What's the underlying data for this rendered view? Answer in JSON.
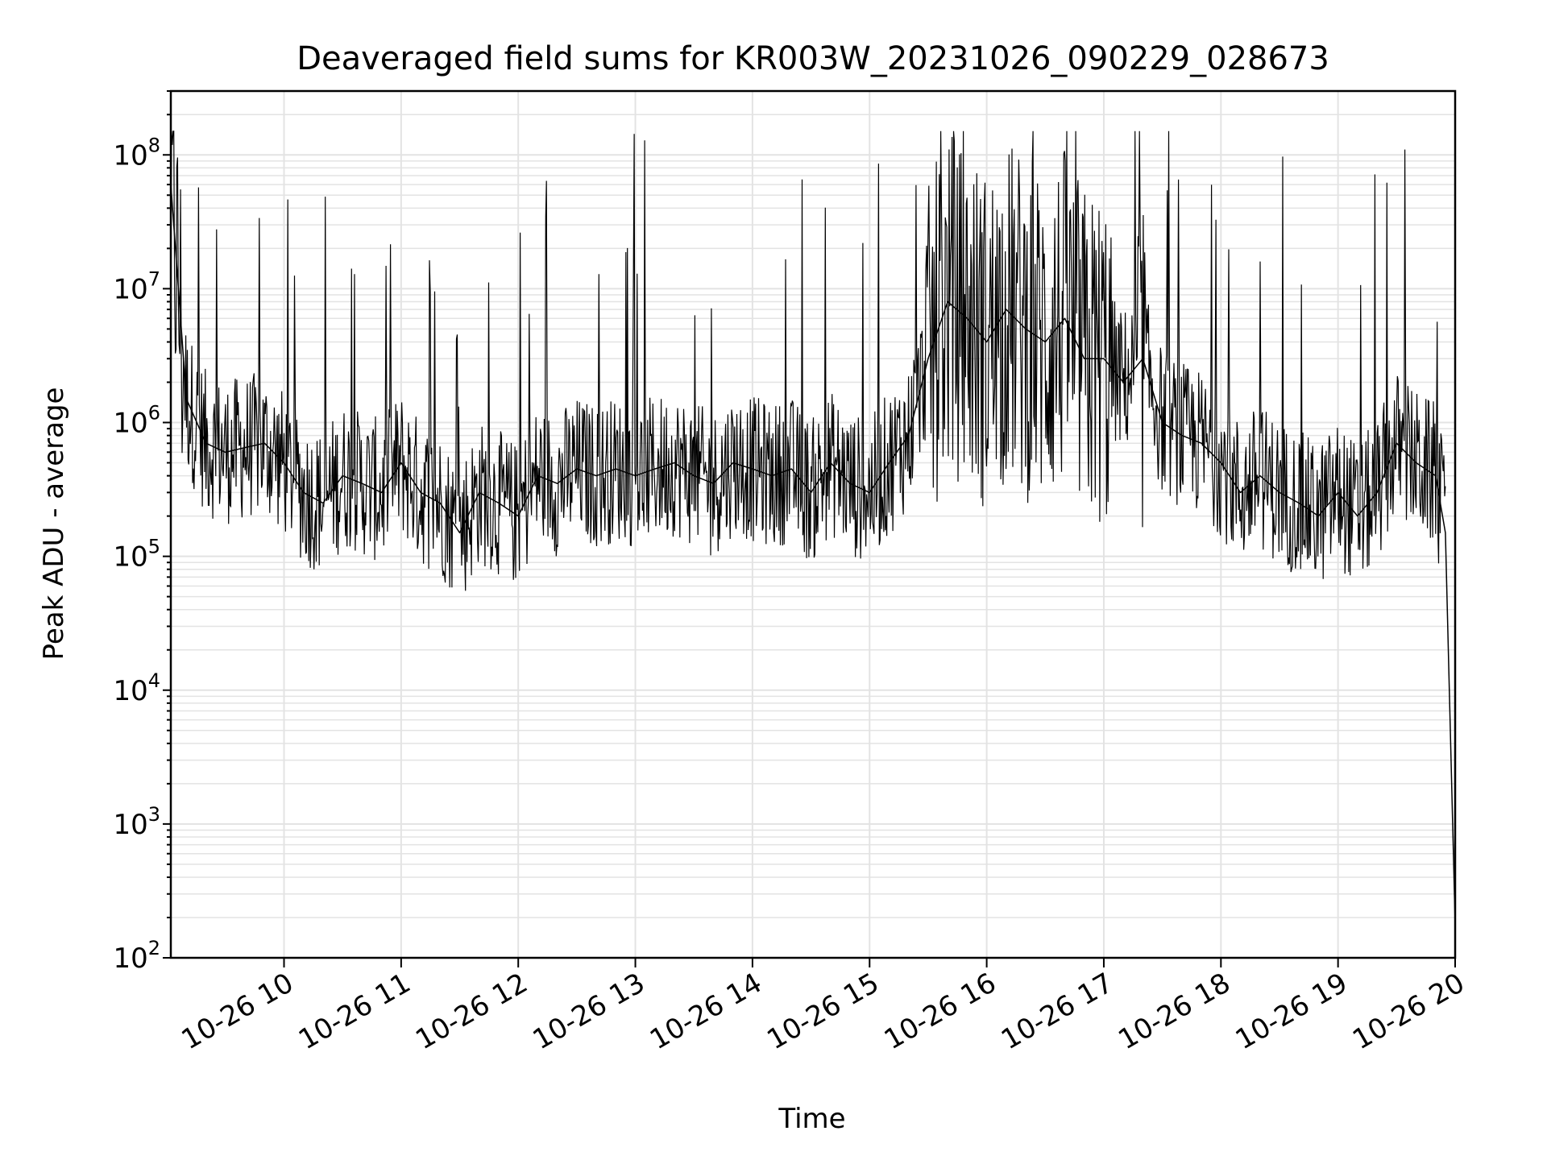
{
  "chart_data": {
    "type": "line",
    "title": "Deaveraged field sums for KR003W_20231026_090229_028673",
    "xlabel": "Time",
    "ylabel": "Peak ADU - average",
    "yscale": "log",
    "ylim": [
      100,
      300000000
    ],
    "xlim": [
      "2023-10-26 09:02",
      "2023-10-26 20:00"
    ],
    "grid": true,
    "line_color": "#000000",
    "x_ticks": [
      {
        "value": "2023-10-26 10:00",
        "label": "10-26 10"
      },
      {
        "value": "2023-10-26 11:00",
        "label": "10-26 11"
      },
      {
        "value": "2023-10-26 12:00",
        "label": "10-26 12"
      },
      {
        "value": "2023-10-26 13:00",
        "label": "10-26 13"
      },
      {
        "value": "2023-10-26 14:00",
        "label": "10-26 14"
      },
      {
        "value": "2023-10-26 15:00",
        "label": "10-26 15"
      },
      {
        "value": "2023-10-26 16:00",
        "label": "10-26 16"
      },
      {
        "value": "2023-10-26 17:00",
        "label": "10-26 17"
      },
      {
        "value": "2023-10-26 18:00",
        "label": "10-26 18"
      },
      {
        "value": "2023-10-26 19:00",
        "label": "10-26 19"
      },
      {
        "value": "2023-10-26 20:00",
        "label": "10-26 20"
      }
    ],
    "y_ticks": [
      {
        "value": 100,
        "base": "10",
        "exp": "2"
      },
      {
        "value": 1000,
        "base": "10",
        "exp": "3"
      },
      {
        "value": 10000,
        "base": "10",
        "exp": "4"
      },
      {
        "value": 100000,
        "base": "10",
        "exp": "5"
      },
      {
        "value": 1000000,
        "base": "10",
        "exp": "6"
      },
      {
        "value": 10000000,
        "base": "10",
        "exp": "7"
      },
      {
        "value": 100000000,
        "base": "10",
        "exp": "8"
      }
    ],
    "series": [
      {
        "x": [
          "2023-10-26 09:02",
          "2023-10-26 09:10",
          "2023-10-26 09:20",
          "2023-10-26 09:30",
          "2023-10-26 09:40",
          "2023-10-26 09:50",
          "2023-10-26 10:00",
          "2023-10-26 10:10",
          "2023-10-26 10:20",
          "2023-10-26 10:30",
          "2023-10-26 10:40",
          "2023-10-26 10:50",
          "2023-10-26 11:00",
          "2023-10-26 11:10",
          "2023-10-26 11:20",
          "2023-10-26 11:30",
          "2023-10-26 11:40",
          "2023-10-26 11:50",
          "2023-10-26 12:00",
          "2023-10-26 12:10",
          "2023-10-26 12:20",
          "2023-10-26 12:30",
          "2023-10-26 12:40",
          "2023-10-26 12:50",
          "2023-10-26 13:00",
          "2023-10-26 13:10",
          "2023-10-26 13:20",
          "2023-10-26 13:30",
          "2023-10-26 13:40",
          "2023-10-26 13:50",
          "2023-10-26 14:00",
          "2023-10-26 14:10",
          "2023-10-26 14:20",
          "2023-10-26 14:30",
          "2023-10-26 14:40",
          "2023-10-26 14:50",
          "2023-10-26 15:00",
          "2023-10-26 15:10",
          "2023-10-26 15:20",
          "2023-10-26 15:30",
          "2023-10-26 15:40",
          "2023-10-26 15:50",
          "2023-10-26 16:00",
          "2023-10-26 16:10",
          "2023-10-26 16:20",
          "2023-10-26 16:30",
          "2023-10-26 16:40",
          "2023-10-26 16:50",
          "2023-10-26 17:00",
          "2023-10-26 17:10",
          "2023-10-26 17:20",
          "2023-10-26 17:30",
          "2023-10-26 17:40",
          "2023-10-26 17:50",
          "2023-10-26 18:00",
          "2023-10-26 18:10",
          "2023-10-26 18:20",
          "2023-10-26 18:30",
          "2023-10-26 18:40",
          "2023-10-26 18:50",
          "2023-10-26 19:00",
          "2023-10-26 19:10",
          "2023-10-26 19:20",
          "2023-10-26 19:30",
          "2023-10-26 19:40",
          "2023-10-26 19:50",
          "2023-10-26 19:55",
          "2023-10-26 20:00"
        ],
        "y": [
          60000000,
          1500000,
          700000,
          600000,
          650000,
          700000,
          500000,
          300000,
          250000,
          400000,
          350000,
          300000,
          500000,
          300000,
          250000,
          150000,
          300000,
          250000,
          200000,
          400000,
          350000,
          450000,
          400000,
          450000,
          400000,
          450000,
          500000,
          400000,
          350000,
          500000,
          450000,
          400000,
          450000,
          300000,
          500000,
          350000,
          300000,
          500000,
          800000,
          3000000,
          8000000,
          6000000,
          4000000,
          7000000,
          5000000,
          4000000,
          6000000,
          3000000,
          3000000,
          2000000,
          3000000,
          1000000,
          800000,
          700000,
          500000,
          300000,
          400000,
          300000,
          250000,
          200000,
          300000,
          200000,
          300000,
          700000,
          500000,
          400000,
          150000,
          180
        ]
      }
    ]
  }
}
